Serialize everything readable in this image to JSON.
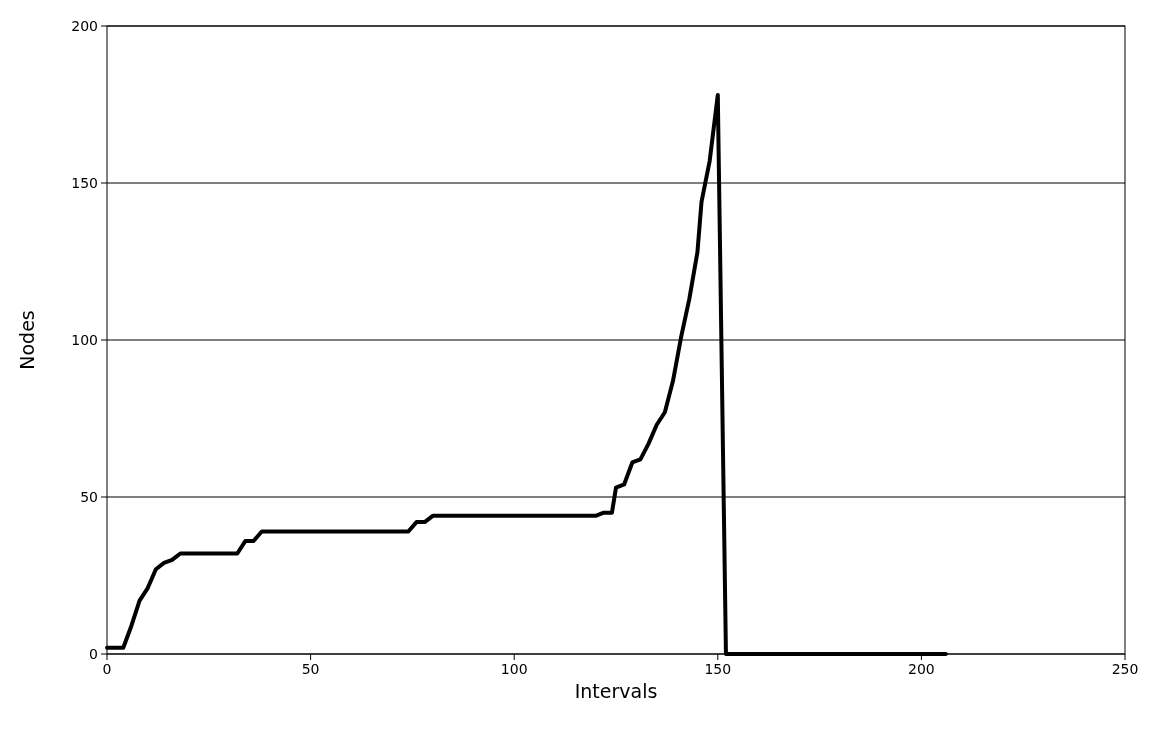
{
  "chart_data": {
    "type": "line",
    "xlabel": "Intervals",
    "ylabel": "Nodes",
    "xlim": [
      0,
      250
    ],
    "ylim": [
      0,
      200
    ],
    "xticks": [
      0,
      50,
      100,
      150,
      200,
      250
    ],
    "yticks": [
      0,
      50,
      100,
      150,
      200
    ],
    "grid": "y",
    "marker": "none",
    "line_style": "solid",
    "series": [
      {
        "color": "#000000",
        "x": [
          0,
          4,
          6,
          8,
          10,
          12,
          14,
          16,
          18,
          32,
          34,
          36,
          38,
          74,
          76,
          78,
          80,
          120,
          122,
          124,
          125,
          127,
          129,
          131,
          133,
          135,
          137,
          139,
          141,
          143,
          145,
          146,
          148,
          150,
          152,
          206
        ],
        "values": [
          2,
          2,
          9,
          17,
          21,
          27,
          29,
          30,
          32,
          32,
          36,
          36,
          39,
          39,
          42,
          42,
          44,
          44,
          45,
          45,
          53,
          54,
          61,
          62,
          67,
          73,
          77,
          87,
          101,
          113,
          128,
          144,
          157,
          178,
          0,
          0
        ]
      }
    ]
  }
}
